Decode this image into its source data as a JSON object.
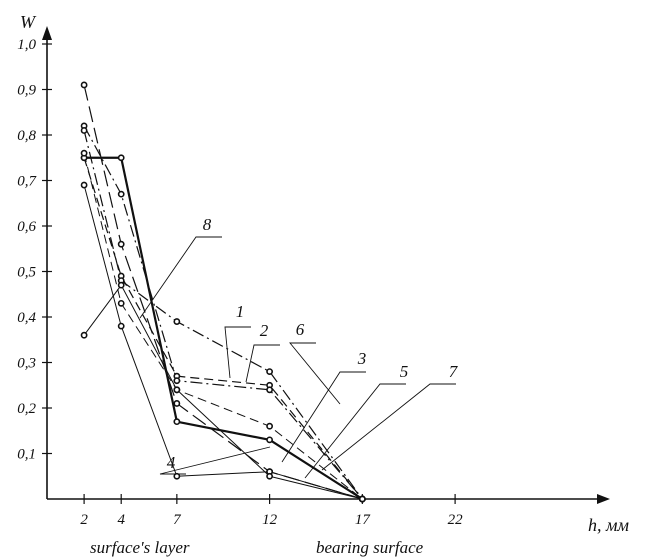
{
  "chart_data": {
    "type": "line",
    "ylabel": "W",
    "xlabel": "h, мм",
    "x_ticks": [
      "2",
      "4",
      "7",
      "12",
      "17",
      "22"
    ],
    "y_ticks": [
      "0,1",
      "0,2",
      "0,3",
      "0,4",
      "0,5",
      "0,6",
      "0,7",
      "0,8",
      "0,9",
      "1,0"
    ],
    "xlim": [
      0,
      26
    ],
    "ylim": [
      0,
      1.05
    ],
    "region_labels": [
      "surface's layer",
      "bearing surface"
    ],
    "series": [
      {
        "name": "1",
        "style": "dash",
        "width": 1.2,
        "x": [
          2,
          4,
          7,
          12,
          17
        ],
        "y": [
          0.75,
          0.49,
          0.27,
          0.25,
          0.0
        ]
      },
      {
        "name": "2",
        "style": "dashdot",
        "width": 1.2,
        "x": [
          2,
          4,
          7,
          12,
          17
        ],
        "y": [
          0.82,
          0.67,
          0.26,
          0.24,
          0.0
        ]
      },
      {
        "name": "3",
        "style": "longdash",
        "width": 1.2,
        "x": [
          2,
          4,
          7,
          12,
          17
        ],
        "y": [
          0.91,
          0.56,
          0.21,
          0.06,
          0.0
        ]
      },
      {
        "name": "4",
        "style": "solid",
        "width": 1.0,
        "x": [
          2,
          4,
          7,
          12,
          17
        ],
        "y": [
          0.69,
          0.38,
          0.05,
          0.06,
          0.0
        ]
      },
      {
        "name": "5",
        "style": "solid",
        "width": 2.2,
        "x": [
          2,
          4,
          7,
          12,
          17
        ],
        "y": [
          0.75,
          0.75,
          0.17,
          0.13,
          0.0
        ]
      },
      {
        "name": "6",
        "style": "dashdot",
        "width": 1.2,
        "x": [
          2,
          4,
          7,
          12,
          17
        ],
        "y": [
          0.81,
          0.48,
          0.39,
          0.28,
          0.0
        ]
      },
      {
        "name": "7",
        "style": "dash",
        "width": 1.0,
        "x": [
          2,
          4,
          7,
          12,
          17
        ],
        "y": [
          0.76,
          0.43,
          0.24,
          0.16,
          0.0
        ]
      },
      {
        "name": "8",
        "style": "solid",
        "width": 1.0,
        "x": [
          2,
          4,
          7,
          12,
          17
        ],
        "y": [
          0.36,
          0.47,
          0.24,
          0.05,
          0.0
        ]
      }
    ]
  }
}
